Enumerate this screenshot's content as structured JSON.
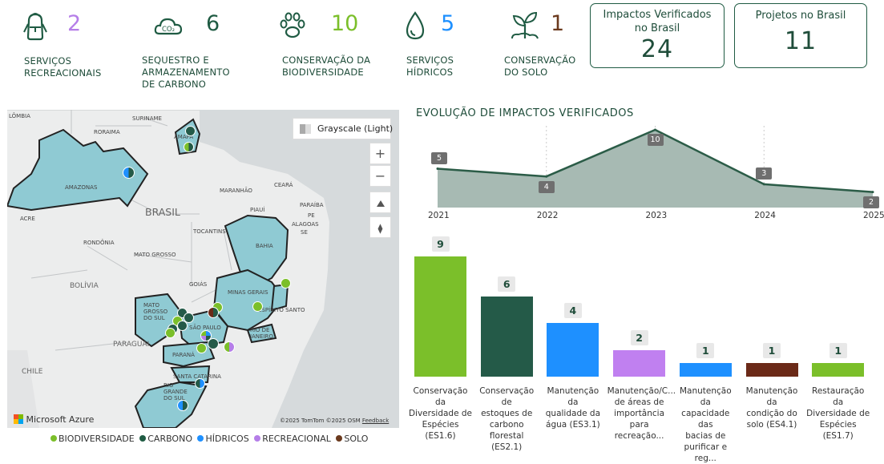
{
  "kpis": [
    {
      "icon": "backpack-icon",
      "value": "2",
      "label_l1": "SERVIÇOS",
      "label_l2": "RECREACIONAIS",
      "label_l3": "",
      "color": "#b57ee8"
    },
    {
      "icon": "co2-cloud-icon",
      "value": "6",
      "label_l1": "SEQUESTRO E",
      "label_l2": "ARMAZENAMENTO",
      "label_l3": "DE CARBONO",
      "color": "#1f5b43"
    },
    {
      "icon": "paw-icon",
      "value": "10",
      "label_l1": "CONSERVAÇÃO DA",
      "label_l2": "BIODIVERSIDADE",
      "label_l3": "",
      "color": "#7bbf2a"
    },
    {
      "icon": "water-drop-icon",
      "value": "5",
      "label_l1": "SERVIÇOS",
      "label_l2": "HÍDRICOS",
      "label_l3": "",
      "color": "#1e90ff"
    },
    {
      "icon": "sprout-icon",
      "value": "1",
      "label_l1": "CONSERVAÇÃO",
      "label_l2": "DO SOLO",
      "label_l3": "",
      "color": "#6b3a1e"
    }
  ],
  "cards": {
    "impacts_title_l1": "Impactos Verificados",
    "impacts_title_l2": "no Brasil",
    "impacts_value": "24",
    "projects_title": "Projetos no Brasil",
    "projects_value": "11"
  },
  "map": {
    "style_button": "Grayscale (Light)",
    "brand": "Microsoft Azure",
    "copyright": "©2025 TomTom ©2025 OSM",
    "feedback": "Feedback",
    "zoom_in": "+",
    "zoom_out": "−",
    "labels": {
      "colombia": "LÔMBIA",
      "suriname": "SURINAME",
      "roraima": "RORAIMA",
      "amapa": "AMAPÁ",
      "amazonas": "AMAZONAS",
      "brasil": "BRASIL",
      "maranhao": "MARANHÃO",
      "ceara": "CEARÁ",
      "paraiba": "PARAÍBA",
      "piaui": "PIAUÍ",
      "pe": "PE",
      "alagoas": "ALAGOAS",
      "sergipe": "SE",
      "acre": "ACRE",
      "rondonia": "RONDÔNIA",
      "tocantins": "TOCANTINS",
      "bahia": "BAHIA",
      "mato_grosso": "MATO GROSSO",
      "bolivia": "BOLÍVIA",
      "goias": "GOIÁS",
      "minas": "MINAS GERAIS",
      "espirito": "ESPÍRITO SANTO",
      "ms": "MATO GROSSO DO SUL",
      "sao_paulo": "SÃO PAULO",
      "rio": "RIO DE JANEIRO",
      "paraguai": "PARAGUAI",
      "parana": "PARANÁ",
      "chile": "CHILE",
      "santa_catarina": "SANTA CATARINA",
      "rs": "RIO GRANDE DO SUL"
    }
  },
  "legend": [
    {
      "label": "BIODIVERSIDADE",
      "color": "#7bbf2a"
    },
    {
      "label": "CARBONO",
      "color": "#1f5b43"
    },
    {
      "label": "HÍDRICOS",
      "color": "#1e90ff"
    },
    {
      "label": "RECREACIONAL",
      "color": "#b57ee8"
    },
    {
      "label": "SOLO",
      "color": "#6b3a1e"
    }
  ],
  "chart_data": [
    {
      "type": "area",
      "title": "EVOLUÇÃO DE IMPACTOS VERIFICADOS",
      "x": [
        "2021",
        "2022",
        "2023",
        "2024",
        "2025"
      ],
      "values": [
        5,
        4,
        10,
        3,
        2
      ],
      "ylim": [
        0,
        10
      ],
      "color": "#2b5c47"
    },
    {
      "type": "bar",
      "categories": [
        "Conservação da Diversidade de Espécies (ES1.6)",
        "Conservação de estoques de carbono florestal (ES2.1)",
        "Manutenção da qualidade da água (ES3.1)",
        "Manutenção/C... de áreas de importância para recreação...",
        "Manutenção da capacidade das bacias de purificar e reg...",
        "Manutenção da condição do solo (ES4.1)",
        "Restauração da Diversidade de Espécies (ES1.7)"
      ],
      "category_lines": [
        [
          "Conservação da",
          "Diversidade de",
          "Espécies (ES1.6)"
        ],
        [
          "Conservação de",
          "estoques de",
          "carbono",
          "florestal (ES2.1)"
        ],
        [
          "Manutenção da",
          "qualidade da",
          "água (ES3.1)"
        ],
        [
          "Manutenção/C...",
          "de áreas de",
          "importância",
          "para recreação..."
        ],
        [
          "Manutenção da",
          "capacidade das",
          "bacias de",
          "purificar e reg..."
        ],
        [
          "Manutenção da",
          "condição do",
          "solo (ES4.1)"
        ],
        [
          "Restauração da",
          "Diversidade de",
          "Espécies (ES1.7)"
        ]
      ],
      "values": [
        9,
        6,
        4,
        2,
        1,
        1,
        1
      ],
      "colors": [
        "#7bbf2a",
        "#245a48",
        "#1e90ff",
        "#c080f0",
        "#1e90ff",
        "#6b2a18",
        "#7bbf2a"
      ],
      "ylim": [
        0,
        9
      ]
    }
  ]
}
